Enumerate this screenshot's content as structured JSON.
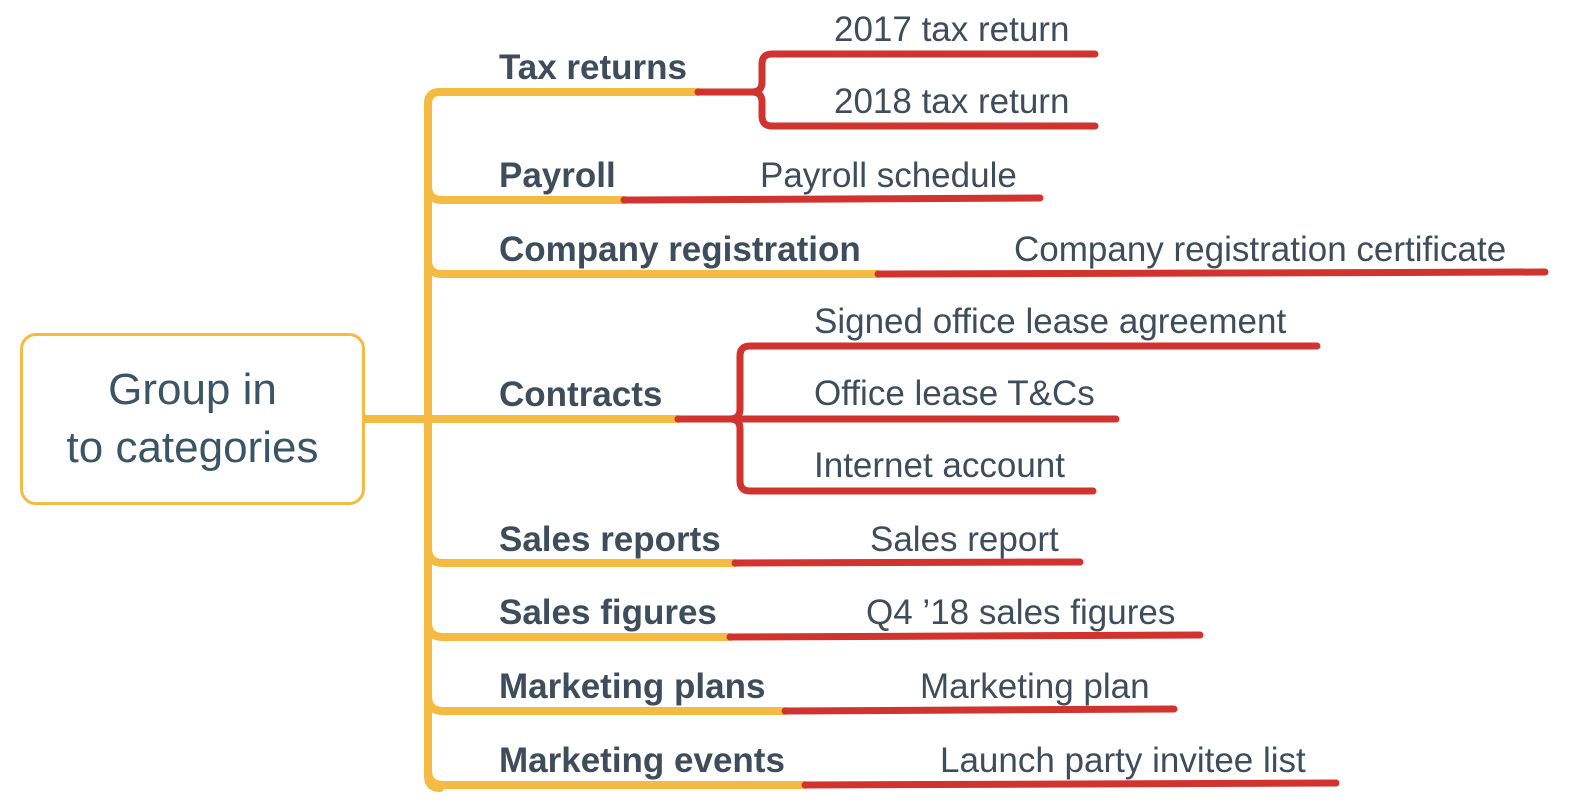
{
  "colors": {
    "category_branch": "#F4BA41",
    "item_branch": "#D1332F",
    "text": "#3E4D5B",
    "root_text": "#3A5566"
  },
  "root": {
    "line1": "Group in",
    "line2": "to categories"
  },
  "categories": [
    {
      "label": "Tax returns",
      "items": [
        "2017 tax return",
        "2018 tax return"
      ]
    },
    {
      "label": "Payroll",
      "items": [
        "Payroll schedule"
      ]
    },
    {
      "label": "Company registration",
      "items": [
        "Company registration certificate"
      ]
    },
    {
      "label": "Contracts",
      "items": [
        "Signed office lease agreement",
        "Office lease T&Cs",
        "Internet account"
      ]
    },
    {
      "label": "Sales reports",
      "items": [
        "Sales report"
      ]
    },
    {
      "label": "Sales figures",
      "items": [
        "Q4 ’18 sales figures"
      ]
    },
    {
      "label": "Marketing plans",
      "items": [
        "Marketing plan"
      ]
    },
    {
      "label": "Marketing events",
      "items": [
        "Launch party invitee list"
      ]
    }
  ]
}
